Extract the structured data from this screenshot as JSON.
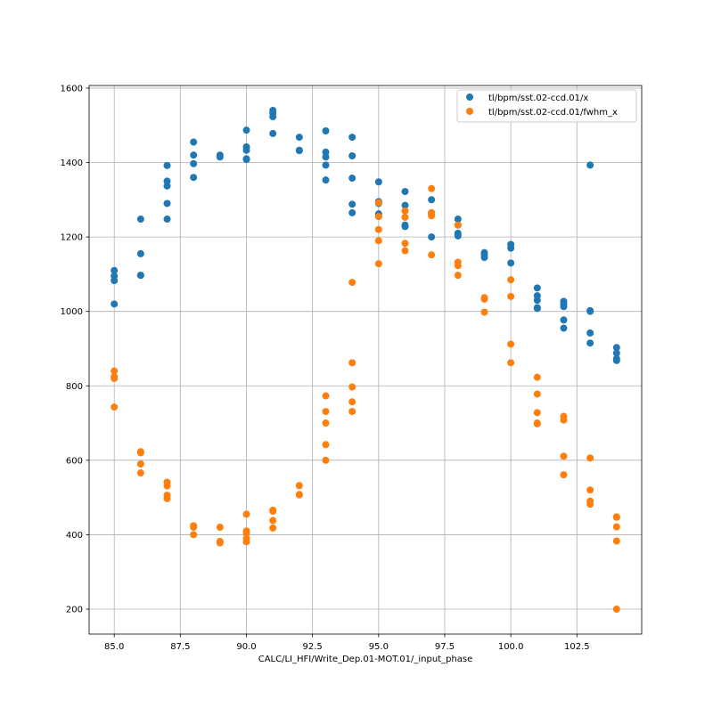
{
  "chart_data": {
    "type": "scatter",
    "title": "",
    "xlabel": "CALC/LI_HFI/Write_Dep.01-MOT.01/_input_phase",
    "ylabel": "",
    "xlim": [
      84.05,
      104.95
    ],
    "ylim": [
      133,
      1607
    ],
    "xticks": [
      85.0,
      87.5,
      90.0,
      92.5,
      95.0,
      97.5,
      100.0,
      102.5
    ],
    "xtick_labels": [
      "85.0",
      "87.5",
      "90.0",
      "92.5",
      "95.0",
      "97.5",
      "100.0",
      "102.5"
    ],
    "yticks": [
      200,
      400,
      600,
      800,
      1000,
      1200,
      1400,
      1600
    ],
    "ytick_labels": [
      "200",
      "400",
      "600",
      "800",
      "1000",
      "1200",
      "1400",
      "1600"
    ],
    "grid": true,
    "legend_position": "top-right",
    "series": [
      {
        "name": "tl/bpm/sst.02-ccd.01/x",
        "color": "#1f77b4",
        "points": {
          "85": [
            1110,
            1095,
            1083,
            1020
          ],
          "86": [
            1248,
            1155,
            1097,
            1097
          ],
          "87": [
            1392,
            1350,
            1337,
            1290,
            1248
          ],
          "88": [
            1455,
            1420,
            1397,
            1360
          ],
          "89": [
            1420,
            1415
          ],
          "90": [
            1487,
            1442,
            1433,
            1410,
            1408
          ],
          "91": [
            1540,
            1533,
            1523,
            1478
          ],
          "92": [
            1468,
            1433,
            1432
          ],
          "93": [
            1485,
            1428,
            1415,
            1393,
            1353
          ],
          "94": [
            1468,
            1418,
            1358,
            1288,
            1265
          ],
          "95": [
            1348,
            1295,
            1290,
            1262,
            1255
          ],
          "96": [
            1322,
            1285,
            1232,
            1228
          ],
          "97": [
            1300,
            1265,
            1262,
            1200
          ],
          "98": [
            1248,
            1232,
            1210,
            1203
          ],
          "99": [
            1158,
            1152,
            1145
          ],
          "100": [
            1180,
            1170,
            1130
          ],
          "101": [
            1063,
            1042,
            1030,
            1010,
            1008
          ],
          "102": [
            1027,
            1020,
            1013,
            977,
            955
          ],
          "103": [
            1393,
            1002,
            1000,
            942,
            915
          ],
          "104": [
            903,
            888,
            873,
            868
          ]
        }
      },
      {
        "name": "tl/bpm/sst.02-ccd.01/fwhm_x",
        "color": "#ff7f0e",
        "points": {
          "85": [
            840,
            825,
            820,
            743
          ],
          "86": [
            623,
            620,
            590,
            566
          ],
          "87": [
            541,
            531,
            506,
            497
          ],
          "88": [
            424,
            420,
            400
          ],
          "89": [
            420,
            382,
            378
          ],
          "90": [
            455,
            410,
            403,
            390,
            381
          ],
          "91": [
            466,
            463,
            438,
            418
          ],
          "92": [
            532,
            508,
            507
          ],
          "93": [
            773,
            731,
            700,
            642,
            600
          ],
          "94": [
            1078,
            862,
            797,
            757,
            731
          ],
          "95": [
            1292,
            1255,
            1220,
            1190,
            1128
          ],
          "96": [
            1270,
            1253,
            1183,
            1163
          ],
          "97": [
            1330,
            1265,
            1257,
            1152
          ],
          "98": [
            1232,
            1132,
            1123,
            1097
          ],
          "99": [
            1037,
            1033,
            998
          ],
          "100": [
            1085,
            1040,
            912,
            862
          ],
          "101": [
            823,
            778,
            728,
            700,
            698
          ],
          "102": [
            718,
            708,
            611,
            561
          ],
          "103": [
            606,
            520,
            490,
            482
          ],
          "104": [
            448,
            447,
            421,
            383,
            200
          ]
        }
      }
    ]
  }
}
